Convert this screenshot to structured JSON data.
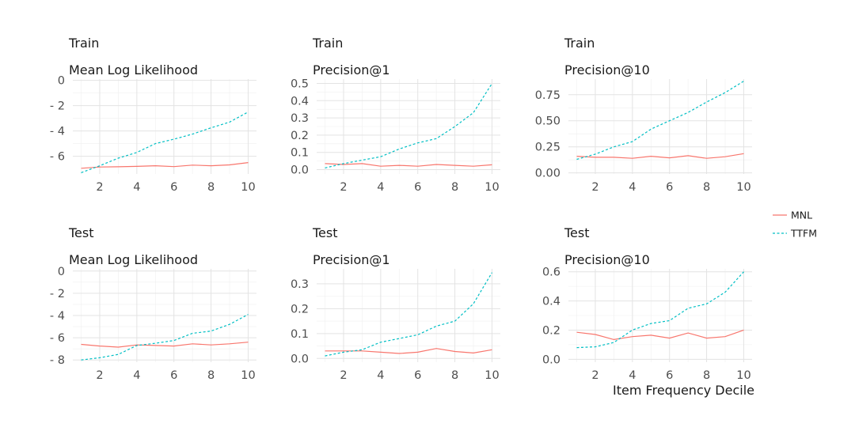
{
  "colors": {
    "MNL": "#F8766D",
    "TTFM": "#00BFC4",
    "grid": "#e3e3e3"
  },
  "xlabel": "Item Frequency Decile",
  "legend": [
    {
      "name": "MNL",
      "dash": "solid"
    },
    {
      "name": "TTFM",
      "dash": "dashed"
    }
  ],
  "chart_data": [
    {
      "type": "line",
      "title": "Train",
      "subtitle": "Mean Log Likelihood",
      "x": [
        1,
        2,
        3,
        4,
        5,
        6,
        7,
        8,
        9,
        10
      ],
      "xticks": [
        2,
        4,
        6,
        8,
        10
      ],
      "xlim": [
        0.55,
        10.45
      ],
      "ylim": [
        -7.4,
        0.1
      ],
      "yticks": [
        0,
        -2,
        -4,
        -6
      ],
      "yticklabels": [
        "0",
        "- 2",
        "- 4",
        "- 6"
      ],
      "series": [
        {
          "name": "MNL",
          "values": [
            -6.95,
            -6.85,
            -6.83,
            -6.8,
            -6.75,
            -6.82,
            -6.7,
            -6.75,
            -6.68,
            -6.5
          ]
        },
        {
          "name": "TTFM",
          "values": [
            -7.3,
            -6.75,
            -6.15,
            -5.7,
            -5.0,
            -4.65,
            -4.25,
            -3.75,
            -3.3,
            -2.5
          ]
        }
      ]
    },
    {
      "type": "line",
      "title": "Train",
      "subtitle": "Precision@1",
      "x": [
        1,
        2,
        3,
        4,
        5,
        6,
        7,
        8,
        9,
        10
      ],
      "xticks": [
        2,
        4,
        6,
        8,
        10
      ],
      "xlim": [
        0.55,
        10.45
      ],
      "ylim": [
        -0.025,
        0.525
      ],
      "yticks": [
        0,
        0.1,
        0.2,
        0.3,
        0.4,
        0.5
      ],
      "yticklabels": [
        "0.0",
        "0.1",
        "0.2",
        "0.3",
        "0.4",
        "0.5"
      ],
      "series": [
        {
          "name": "MNL",
          "values": [
            0.035,
            0.03,
            0.035,
            0.02,
            0.025,
            0.02,
            0.03,
            0.025,
            0.02,
            0.028
          ]
        },
        {
          "name": "TTFM",
          "values": [
            0.01,
            0.035,
            0.055,
            0.075,
            0.12,
            0.155,
            0.18,
            0.25,
            0.33,
            0.5
          ]
        }
      ]
    },
    {
      "type": "line",
      "title": "Train",
      "subtitle": "Precision@10",
      "x": [
        1,
        2,
        3,
        4,
        5,
        6,
        7,
        8,
        9,
        10
      ],
      "xticks": [
        2,
        4,
        6,
        8,
        10
      ],
      "xlim": [
        0.55,
        10.45
      ],
      "ylim": [
        -0.01,
        0.9
      ],
      "yticks": [
        0,
        0.25,
        0.5,
        0.75
      ],
      "yticklabels": [
        "0.00",
        "0.25",
        "0.50",
        "0.75"
      ],
      "series": [
        {
          "name": "MNL",
          "values": [
            0.16,
            0.15,
            0.15,
            0.14,
            0.16,
            0.145,
            0.165,
            0.14,
            0.155,
            0.185
          ]
        },
        {
          "name": "TTFM",
          "values": [
            0.13,
            0.18,
            0.25,
            0.3,
            0.42,
            0.5,
            0.58,
            0.68,
            0.77,
            0.88
          ]
        }
      ]
    },
    {
      "type": "line",
      "title": "Test",
      "subtitle": "Mean Log Likelihood",
      "x": [
        1,
        2,
        3,
        4,
        5,
        6,
        7,
        8,
        9,
        10
      ],
      "xticks": [
        2,
        4,
        6,
        8,
        10
      ],
      "xlim": [
        0.55,
        10.45
      ],
      "ylim": [
        -8.2,
        0.2
      ],
      "yticks": [
        0,
        -2,
        -4,
        -6,
        -8
      ],
      "yticklabels": [
        "0",
        "- 2",
        "- 4",
        "- 6",
        "- 8"
      ],
      "series": [
        {
          "name": "MNL",
          "values": [
            -6.6,
            -6.75,
            -6.85,
            -6.65,
            -6.7,
            -6.75,
            -6.55,
            -6.65,
            -6.55,
            -6.4
          ]
        },
        {
          "name": "TTFM",
          "values": [
            -8.0,
            -7.8,
            -7.5,
            -6.7,
            -6.5,
            -6.25,
            -5.6,
            -5.4,
            -4.8,
            -3.9
          ]
        }
      ]
    },
    {
      "type": "line",
      "title": "Test",
      "subtitle": "Precision@1",
      "x": [
        1,
        2,
        3,
        4,
        5,
        6,
        7,
        8,
        9,
        10
      ],
      "xticks": [
        2,
        4,
        6,
        8,
        10
      ],
      "xlim": [
        0.55,
        10.45
      ],
      "ylim": [
        -0.015,
        0.36
      ],
      "yticks": [
        0,
        0.1,
        0.2,
        0.3
      ],
      "yticklabels": [
        "0.0",
        "0.1",
        "0.2",
        "0.3"
      ],
      "series": [
        {
          "name": "MNL",
          "values": [
            0.03,
            0.03,
            0.03,
            0.025,
            0.02,
            0.025,
            0.04,
            0.028,
            0.022,
            0.035
          ]
        },
        {
          "name": "TTFM",
          "values": [
            0.01,
            0.025,
            0.035,
            0.065,
            0.08,
            0.095,
            0.13,
            0.15,
            0.22,
            0.345
          ]
        }
      ]
    },
    {
      "type": "line",
      "title": "Test",
      "subtitle": "Precision@10",
      "x": [
        1,
        2,
        3,
        4,
        5,
        6,
        7,
        8,
        9,
        10
      ],
      "xticks": [
        2,
        4,
        6,
        8,
        10
      ],
      "xlim": [
        0.55,
        10.45
      ],
      "ylim": [
        -0.02,
        0.62
      ],
      "yticks": [
        0,
        0.2,
        0.4,
        0.6
      ],
      "yticklabels": [
        "0.0",
        "0.2",
        "0.4",
        "0.6"
      ],
      "series": [
        {
          "name": "MNL",
          "values": [
            0.185,
            0.17,
            0.135,
            0.155,
            0.165,
            0.145,
            0.18,
            0.145,
            0.155,
            0.2
          ]
        },
        {
          "name": "TTFM",
          "values": [
            0.08,
            0.085,
            0.115,
            0.2,
            0.245,
            0.265,
            0.35,
            0.38,
            0.46,
            0.6
          ]
        }
      ]
    }
  ]
}
